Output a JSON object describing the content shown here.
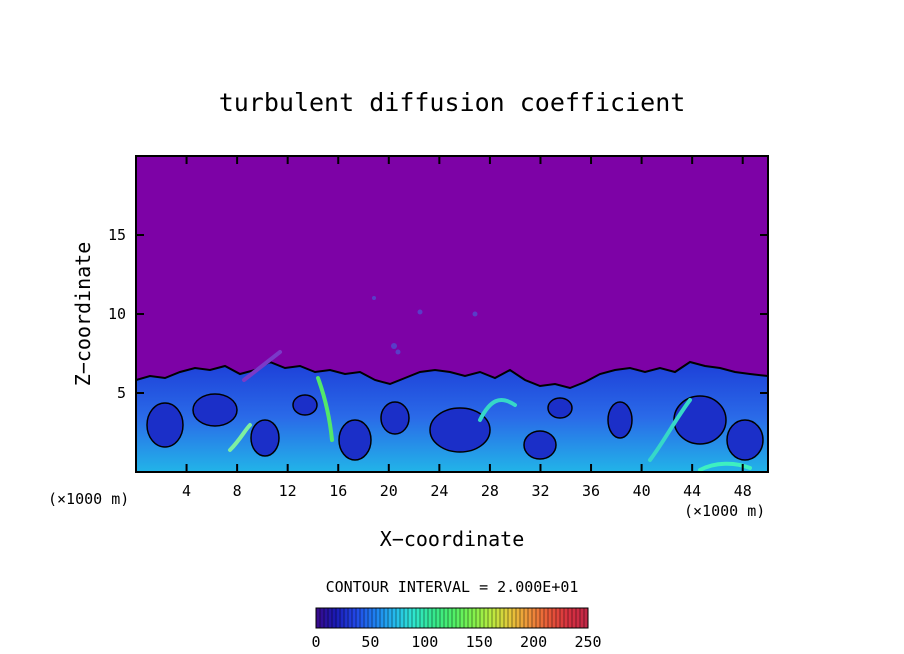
{
  "chart_data": {
    "type": "heatmap",
    "title": "turbulent diffusion coefficient",
    "xlabel": "X−coordinate",
    "ylabel": "Z−coordinate",
    "x_unit_left": "(×1000 m)",
    "x_unit_right": "(×1000 m)",
    "xlim": [
      0,
      50
    ],
    "ylim": [
      0,
      20
    ],
    "x_ticks": [
      4,
      8,
      12,
      16,
      20,
      24,
      28,
      32,
      36,
      40,
      44,
      48
    ],
    "y_ticks": [
      5,
      10,
      15
    ],
    "background_color": "#7d02a6",
    "contour_interval_text": "CONTOUR INTERVAL = 2.000E+01",
    "colorbar": {
      "ticks": [
        0,
        50,
        100,
        150,
        200,
        250
      ],
      "range": [
        0,
        250
      ],
      "colors": [
        "#3a0a8a",
        "#1a1ab4",
        "#2246e6",
        "#1e7ef0",
        "#24b8ee",
        "#2ee6d0",
        "#34e890",
        "#4cf06a",
        "#7cf24e",
        "#b8ec40",
        "#e6c83a",
        "#f0903a",
        "#e85838",
        "#d83040",
        "#c02848"
      ]
    }
  }
}
